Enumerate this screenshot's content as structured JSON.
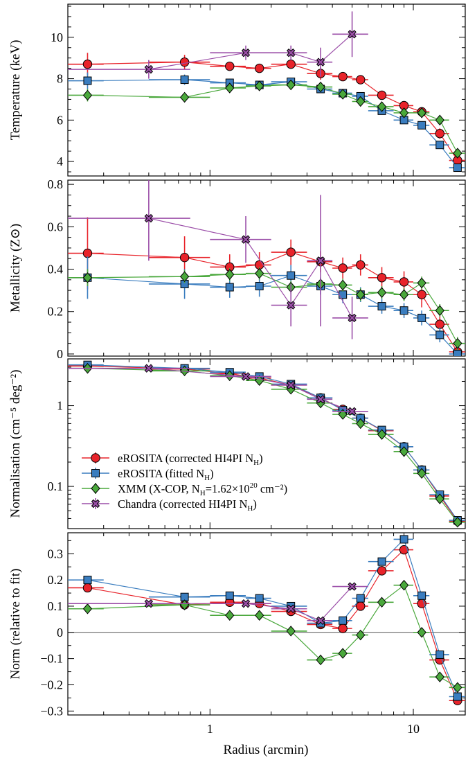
{
  "figure": {
    "xlabel": "Radius (arcmin)"
  },
  "colors": {
    "erosita_hi4pi": "#e8232a",
    "erosita_fitted": "#3a7dbf",
    "xmm": "#4aa83c",
    "chandra": "#9b4ea8"
  },
  "chart_data": [
    {
      "type": "scatter",
      "panel": "temperature",
      "ylabel": "Temperature (keV)",
      "xscale": "log",
      "xlim": [
        0.2,
        18
      ],
      "ylim": [
        3.3,
        11.6
      ],
      "yticks": [
        4,
        6,
        8,
        10
      ],
      "ytick_labels": [
        "4",
        "6",
        "8",
        "10"
      ],
      "xticks": [
        1,
        10
      ],
      "xtick_labels": [
        "1",
        "10"
      ],
      "grid": false,
      "series": [
        {
          "key": "erosita_hi4pi",
          "marker": "circle",
          "x": [
            0.25,
            0.75,
            1.25,
            1.75,
            2.5,
            3.5,
            4.5,
            5.5,
            7.0,
            9.0,
            11.0,
            13.5,
            16.5
          ],
          "xerr": [
            0.05,
            0.25,
            0.25,
            0.25,
            0.5,
            0.5,
            0.5,
            0.5,
            1.0,
            1.0,
            1.0,
            1.5,
            1.5
          ],
          "y": [
            8.7,
            8.8,
            8.6,
            8.5,
            8.7,
            8.25,
            8.1,
            7.95,
            7.2,
            6.7,
            6.4,
            5.35,
            4.05
          ],
          "yerr": [
            0.55,
            0.35,
            0.2,
            0.2,
            0.2,
            0.3,
            0.2,
            0.15,
            0.15,
            0.15,
            0.2,
            0.25,
            0.3
          ]
        },
        {
          "key": "erosita_fitted",
          "marker": "square",
          "x": [
            0.25,
            0.75,
            1.25,
            1.75,
            2.5,
            3.5,
            4.5,
            5.5,
            7.0,
            9.0,
            11.0,
            13.5,
            16.5
          ],
          "xerr": [
            0.05,
            0.25,
            0.25,
            0.25,
            0.5,
            0.5,
            0.5,
            0.5,
            1.0,
            1.0,
            1.0,
            1.5,
            1.5
          ],
          "y": [
            7.9,
            7.95,
            7.8,
            7.7,
            7.85,
            7.5,
            7.3,
            7.15,
            6.45,
            6.0,
            5.75,
            4.8,
            3.7
          ],
          "yerr": [
            0.4,
            0.25,
            0.2,
            0.15,
            0.15,
            0.2,
            0.15,
            0.1,
            0.1,
            0.1,
            0.1,
            0.1,
            0.15
          ]
        },
        {
          "key": "xmm",
          "marker": "diamond",
          "x": [
            0.25,
            0.75,
            1.25,
            1.75,
            2.5,
            3.5,
            4.5,
            5.5,
            7.0,
            9.0,
            11.0,
            13.5,
            16.5
          ],
          "xerr": [
            0.05,
            0.25,
            0.25,
            0.25,
            0.5,
            0.5,
            0.5,
            0.5,
            1.0,
            1.0,
            1.0,
            1.5,
            1.5
          ],
          "y": [
            7.2,
            7.1,
            7.55,
            7.65,
            7.7,
            7.6,
            7.25,
            6.9,
            6.65,
            6.35,
            6.35,
            6.0,
            4.4
          ],
          "yerr": [
            0.3,
            0.15,
            0.15,
            0.15,
            0.15,
            0.15,
            0.15,
            0.15,
            0.15,
            0.15,
            0.2,
            0.15,
            0.2
          ]
        },
        {
          "key": "chandra",
          "marker": "x",
          "x": [
            0.5,
            1.5,
            2.5,
            3.5,
            5.0
          ],
          "xerr": [
            0.3,
            0.5,
            0.5,
            0.5,
            1.0
          ],
          "y": [
            8.45,
            9.25,
            9.25,
            8.8,
            10.15
          ],
          "yerr": [
            0.45,
            0.35,
            0.35,
            0.7,
            1.1
          ]
        }
      ]
    },
    {
      "type": "scatter",
      "panel": "metallicity",
      "ylabel": "Metallicity (Z⊙)",
      "xscale": "log",
      "xlim": [
        0.2,
        18
      ],
      "ylim": [
        -0.01,
        0.82
      ],
      "yticks": [
        0,
        0.2,
        0.4,
        0.6,
        0.8
      ],
      "ytick_labels": [
        "0",
        "0.2",
        "0.4",
        "0.6",
        "0.8"
      ],
      "xticks": [
        1,
        10
      ],
      "xtick_labels": [
        "1",
        "10"
      ],
      "grid": false,
      "series": [
        {
          "key": "erosita_hi4pi",
          "marker": "circle",
          "x": [
            0.25,
            0.75,
            1.25,
            1.75,
            2.5,
            3.5,
            4.5,
            5.5,
            7.0,
            9.0,
            11.0,
            13.5,
            16.5
          ],
          "xerr": [
            0.05,
            0.25,
            0.25,
            0.25,
            0.5,
            0.5,
            0.5,
            0.5,
            1.0,
            1.0,
            1.0,
            1.5,
            1.5
          ],
          "y": [
            0.475,
            0.455,
            0.41,
            0.42,
            0.48,
            0.435,
            0.405,
            0.42,
            0.36,
            0.34,
            0.28,
            0.14,
            0.01
          ],
          "yerr": [
            0.17,
            0.1,
            0.06,
            0.06,
            0.06,
            0.05,
            0.05,
            0.05,
            0.05,
            0.05,
            0.06,
            0.06,
            0.04
          ]
        },
        {
          "key": "erosita_fitted",
          "marker": "square",
          "x": [
            0.25,
            0.75,
            1.25,
            1.75,
            2.5,
            3.5,
            4.5,
            5.5,
            7.0,
            9.0,
            11.0,
            13.5,
            16.5
          ],
          "xerr": [
            0.05,
            0.25,
            0.25,
            0.25,
            0.5,
            0.5,
            0.5,
            0.5,
            1.0,
            1.0,
            1.0,
            1.5,
            1.5
          ],
          "y": [
            0.36,
            0.33,
            0.315,
            0.32,
            0.37,
            0.32,
            0.28,
            0.28,
            0.225,
            0.205,
            0.17,
            0.09,
            0.0
          ],
          "yerr": [
            0.1,
            0.07,
            0.05,
            0.05,
            0.05,
            0.04,
            0.04,
            0.035,
            0.035,
            0.035,
            0.035,
            0.035,
            0.03
          ]
        },
        {
          "key": "xmm",
          "marker": "diamond",
          "x": [
            0.25,
            0.75,
            1.25,
            1.75,
            2.5,
            3.5,
            4.5,
            5.5,
            7.0,
            9.0,
            11.0,
            13.5,
            16.5
          ],
          "xerr": [
            0.05,
            0.25,
            0.25,
            0.25,
            0.5,
            0.5,
            0.5,
            0.5,
            1.0,
            1.0,
            1.0,
            1.5,
            1.5
          ],
          "y": [
            0.36,
            0.365,
            0.375,
            0.38,
            0.315,
            0.33,
            0.325,
            0.28,
            0.29,
            0.28,
            0.335,
            0.205,
            0.05
          ],
          "yerr": [
            0.04,
            0.03,
            0.03,
            0.03,
            0.03,
            0.03,
            0.03,
            0.03,
            0.03,
            0.03,
            0.03,
            0.03,
            0.03
          ]
        },
        {
          "key": "chandra",
          "marker": "x",
          "x": [
            0.5,
            1.5,
            2.5,
            3.5,
            5.0
          ],
          "xerr": [
            0.3,
            0.5,
            0.5,
            0.5,
            1.0
          ],
          "y": [
            0.64,
            0.54,
            0.23,
            0.44,
            0.17
          ],
          "yerr": [
            0.2,
            0.11,
            0.1,
            0.31,
            0.1
          ]
        }
      ]
    },
    {
      "type": "scatter",
      "panel": "normalisation",
      "ylabel": "Normalisation (cm⁻⁵ deg⁻²)",
      "xscale": "log",
      "yscale": "log",
      "xlim": [
        0.2,
        18
      ],
      "ylim": [
        0.03,
        3.8
      ],
      "yticks": [
        0.1,
        1
      ],
      "ytick_labels": [
        "0.1",
        "1"
      ],
      "xticks": [
        1,
        10
      ],
      "xtick_labels": [
        "1",
        "10"
      ],
      "grid": false,
      "legend": {
        "position": "lower-left",
        "entries": [
          {
            "key": "erosita_hi4pi",
            "label": "eROSITA (corrected HI4PI N",
            "sub": "H",
            "tail": ")"
          },
          {
            "key": "erosita_fitted",
            "label": "eROSITA (fitted N",
            "sub": "H",
            "tail": ")"
          },
          {
            "key": "xmm",
            "label": "XMM (X-COP, N",
            "sub": "H",
            "mid": "=1.62×10",
            "sup": "20",
            "tail": " cm⁻²)"
          },
          {
            "key": "chandra",
            "label": "Chandra (corrected HI4PI N",
            "sub": "H",
            "tail": ")"
          }
        ]
      },
      "series": [
        {
          "key": "erosita_hi4pi",
          "marker": "circle",
          "x": [
            0.25,
            0.75,
            1.25,
            1.75,
            2.5,
            3.5,
            4.5,
            5.5,
            7.0,
            9.0,
            11.0,
            13.5,
            16.5
          ],
          "xerr": [
            0.05,
            0.25,
            0.25,
            0.25,
            0.5,
            0.5,
            0.5,
            0.5,
            1.0,
            1.0,
            1.0,
            1.5,
            1.5
          ],
          "y": [
            3.1,
            2.85,
            2.5,
            2.2,
            1.8,
            1.25,
            0.9,
            0.7,
            0.49,
            0.31,
            0.16,
            0.076,
            0.037
          ]
        },
        {
          "key": "erosita_fitted",
          "marker": "square",
          "x": [
            0.25,
            0.75,
            1.25,
            1.75,
            2.5,
            3.5,
            4.5,
            5.5,
            7.0,
            9.0,
            11.0,
            13.5,
            16.5
          ],
          "xerr": [
            0.05,
            0.25,
            0.25,
            0.25,
            0.5,
            0.5,
            0.5,
            0.5,
            1.0,
            1.0,
            1.0,
            1.5,
            1.5
          ],
          "y": [
            3.2,
            2.9,
            2.6,
            2.3,
            1.85,
            1.25,
            0.88,
            0.7,
            0.5,
            0.31,
            0.16,
            0.079,
            0.038
          ]
        },
        {
          "key": "xmm",
          "marker": "diamond",
          "x": [
            0.25,
            0.75,
            1.25,
            1.75,
            2.5,
            3.5,
            4.5,
            5.5,
            7.0,
            9.0,
            11.0,
            13.5,
            16.5
          ],
          "xerr": [
            0.05,
            0.25,
            0.25,
            0.25,
            0.5,
            0.5,
            0.5,
            0.5,
            1.0,
            1.0,
            1.0,
            1.5,
            1.5
          ],
          "y": [
            2.9,
            2.7,
            2.35,
            2.05,
            1.6,
            1.08,
            0.78,
            0.6,
            0.44,
            0.27,
            0.145,
            0.07,
            0.036
          ]
        },
        {
          "key": "chandra",
          "marker": "x",
          "x": [
            0.5,
            1.5,
            2.5,
            3.5,
            5.0
          ],
          "xerr": [
            0.3,
            0.5,
            0.5,
            0.5,
            1.0
          ],
          "y": [
            2.9,
            2.3,
            1.8,
            1.2,
            0.85
          ]
        }
      ]
    },
    {
      "type": "scatter",
      "panel": "relative_norm",
      "ylabel": "Norm (relative to fit)",
      "xscale": "log",
      "xlim": [
        0.2,
        18
      ],
      "ylim": [
        -0.315,
        0.38
      ],
      "yticks": [
        -0.3,
        -0.2,
        -0.1,
        0,
        0.1,
        0.2,
        0.3
      ],
      "ytick_labels": [
        "−0.3",
        "−0.2",
        "−0.1",
        "0",
        "0.1",
        "0.2",
        "0.3"
      ],
      "xticks": [
        1,
        10
      ],
      "xtick_labels": [
        "1",
        "10"
      ],
      "zero_line": true,
      "grid": false,
      "series": [
        {
          "key": "erosita_hi4pi",
          "marker": "circle",
          "x": [
            0.25,
            0.75,
            1.25,
            1.75,
            2.5,
            3.5,
            4.5,
            5.5,
            7.0,
            9.0,
            11.0,
            13.5,
            16.5
          ],
          "xerr": [
            0.05,
            0.25,
            0.25,
            0.25,
            0.5,
            0.5,
            0.5,
            0.5,
            1.0,
            1.0,
            1.0,
            1.5,
            1.5
          ],
          "y": [
            0.17,
            0.105,
            0.115,
            0.11,
            0.08,
            0.03,
            0.015,
            0.1,
            0.235,
            0.315,
            0.11,
            -0.105,
            -0.26
          ]
        },
        {
          "key": "erosita_fitted",
          "marker": "square",
          "x": [
            0.25,
            0.75,
            1.25,
            1.75,
            2.5,
            3.5,
            4.5,
            5.5,
            7.0,
            9.0,
            11.0,
            13.5,
            16.5
          ],
          "xerr": [
            0.05,
            0.25,
            0.25,
            0.25,
            0.5,
            0.5,
            0.5,
            0.5,
            1.0,
            1.0,
            1.0,
            1.5,
            1.5
          ],
          "y": [
            0.2,
            0.135,
            0.14,
            0.13,
            0.1,
            0.035,
            0.045,
            0.13,
            0.27,
            0.355,
            0.14,
            -0.085,
            -0.245
          ]
        },
        {
          "key": "xmm",
          "marker": "diamond",
          "x": [
            0.25,
            0.75,
            1.25,
            1.75,
            2.5,
            3.5,
            4.5,
            5.5,
            7.0,
            9.0,
            11.0,
            13.5,
            16.5
          ],
          "xerr": [
            0.05,
            0.25,
            0.25,
            0.25,
            0.5,
            0.5,
            0.5,
            0.5,
            1.0,
            1.0,
            1.0,
            1.5,
            1.5
          ],
          "y": [
            0.09,
            0.105,
            0.065,
            0.065,
            0.005,
            -0.105,
            -0.08,
            -0.01,
            0.115,
            0.18,
            0.0,
            -0.17,
            -0.21
          ]
        },
        {
          "key": "chandra",
          "marker": "x",
          "x": [
            0.5,
            1.5,
            2.5,
            3.5,
            5.0
          ],
          "xerr": [
            0.3,
            0.5,
            0.5,
            0.5,
            1.0
          ],
          "y": [
            0.11,
            0.11,
            0.09,
            0.045,
            0.175
          ]
        }
      ]
    }
  ]
}
